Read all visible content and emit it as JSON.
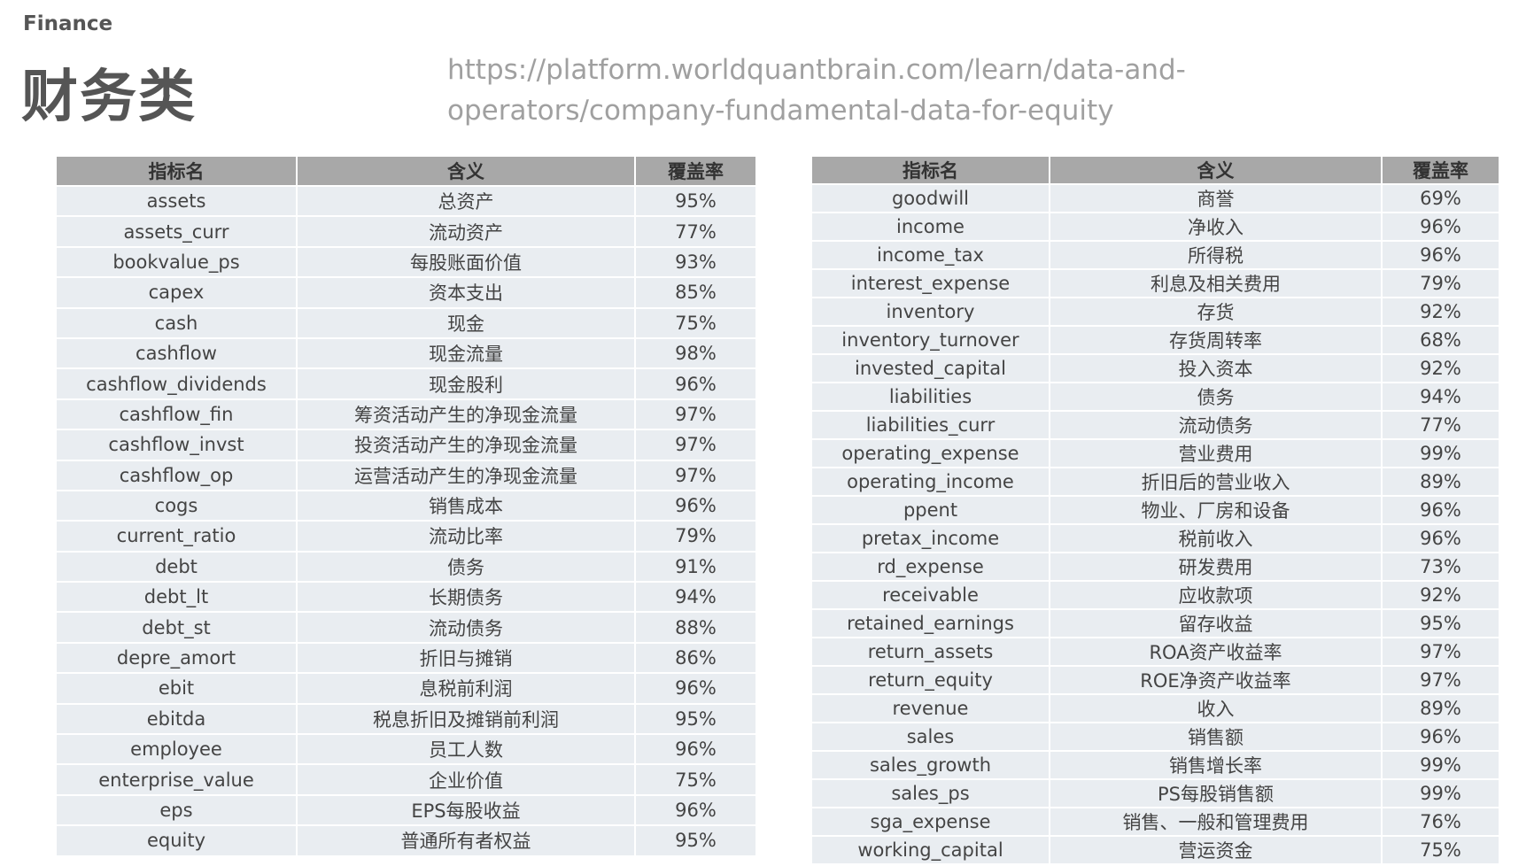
{
  "header": {
    "label": "Finance",
    "title": "财务类",
    "url_lines": [
      "https://platform.worldquantbrain.com/learn/data-and-",
      "operators/company-fundamental-data-for-equity"
    ]
  },
  "tables": [
    {
      "headers": [
        "指标名",
        "含义",
        "覆盖率"
      ],
      "rows": [
        [
          "assets",
          "总资产",
          "95%"
        ],
        [
          "assets_curr",
          "流动资产",
          "77%"
        ],
        [
          "bookvalue_ps",
          "每股账面价值",
          "93%"
        ],
        [
          "capex",
          "资本支出",
          "85%"
        ],
        [
          "cash",
          "现金",
          "75%"
        ],
        [
          "cashflow",
          "现金流量",
          "98%"
        ],
        [
          "cashflow_dividends",
          "现金股利",
          "96%"
        ],
        [
          "cashflow_fin",
          "筹资活动产生的净现金流量",
          "97%"
        ],
        [
          "cashflow_invst",
          "投资活动产生的净现金流量",
          "97%"
        ],
        [
          "cashflow_op",
          "运营活动产生的净现金流量",
          "97%"
        ],
        [
          "cogs",
          "销售成本",
          "96%"
        ],
        [
          "current_ratio",
          "流动比率",
          "79%"
        ],
        [
          "debt",
          "债务",
          "91%"
        ],
        [
          "debt_lt",
          "长期债务",
          "94%"
        ],
        [
          "debt_st",
          "流动债务",
          "88%"
        ],
        [
          "depre_amort",
          "折旧与摊销",
          "86%"
        ],
        [
          "ebit",
          "息税前利润",
          "96%"
        ],
        [
          "ebitda",
          "税息折旧及摊销前利润",
          "95%"
        ],
        [
          "employee",
          "员工人数",
          "96%"
        ],
        [
          "enterprise_value",
          "企业价值",
          "75%"
        ],
        [
          "eps",
          "EPS每股收益",
          "96%"
        ],
        [
          "equity",
          "普通所有者权益",
          "95%"
        ]
      ]
    },
    {
      "headers": [
        "指标名",
        "含义",
        "覆盖率"
      ],
      "rows": [
        [
          "goodwill",
          "商誉",
          "69%"
        ],
        [
          "income",
          "净收入",
          "96%"
        ],
        [
          "income_tax",
          "所得税",
          "96%"
        ],
        [
          "interest_expense",
          "利息及相关费用",
          "79%"
        ],
        [
          "inventory",
          "存货",
          "92%"
        ],
        [
          "inventory_turnover",
          "存货周转率",
          "68%"
        ],
        [
          "invested_capital",
          "投入资本",
          "92%"
        ],
        [
          "liabilities",
          "债务",
          "94%"
        ],
        [
          "liabilities_curr",
          "流动债务",
          "77%"
        ],
        [
          "operating_expense",
          "营业费用",
          "99%"
        ],
        [
          "operating_income",
          "折旧后的营业收入",
          "89%"
        ],
        [
          "ppent",
          "物业、厂房和设备",
          "96%"
        ],
        [
          "pretax_income",
          "税前收入",
          "96%"
        ],
        [
          "rd_expense",
          "研发费用",
          "73%"
        ],
        [
          "receivable",
          "应收款项",
          "92%"
        ],
        [
          "retained_earnings",
          "留存收益",
          "95%"
        ],
        [
          "return_assets",
          "ROA资产收益率",
          "97%"
        ],
        [
          "return_equity",
          "ROE净资产收益率",
          "97%"
        ],
        [
          "revenue",
          "收入",
          "89%"
        ],
        [
          "sales",
          "销售额",
          "96%"
        ],
        [
          "sales_growth",
          "销售增长率",
          "99%"
        ],
        [
          "sales_ps",
          "PS每股销售额",
          "99%"
        ],
        [
          "sga_expense",
          "销售、一般和管理费用",
          "76%"
        ],
        [
          "working_capital",
          "营运资金",
          "75%"
        ]
      ]
    }
  ]
}
